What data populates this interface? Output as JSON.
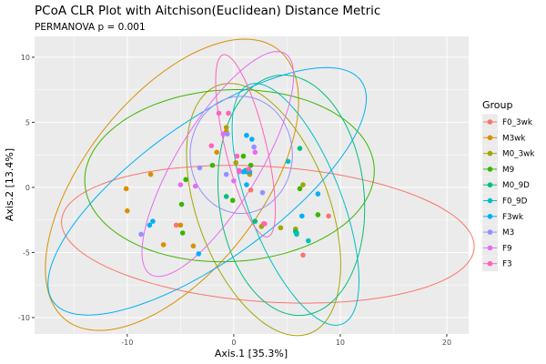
{
  "chart_data": {
    "type": "scatter",
    "title": "PCoA CLR Plot with Aitchison(Euclidean) Distance Metric",
    "subtitle": "PERMANOVA p = 0.001",
    "xlabel": "Axis.1  [35.3%]",
    "ylabel": "Axis.2  [13.4%]",
    "xlim": [
      -18.7,
      22.05
    ],
    "ylim": [
      -11.26,
      11.6
    ],
    "xticks": [
      -10,
      0,
      10,
      20
    ],
    "yticks": [
      -10,
      -5,
      0,
      5,
      10
    ],
    "grid": true,
    "legend": {
      "title": "Group",
      "placement": "right"
    },
    "series": [
      {
        "name": "F0_3wk",
        "color": "#F8766D",
        "points": [
          [
            -5.4,
            -2.9
          ],
          [
            1.6,
            -0.2
          ],
          [
            8.9,
            -2.2
          ],
          [
            6.5,
            -5.2
          ],
          [
            2.8,
            -2.8
          ]
        ],
        "ellipse": {
          "center": [
            3.2,
            -3.6
          ],
          "a": 19.4,
          "b": 5.2,
          "angle": -3
        }
      },
      {
        "name": "M3wk",
        "color": "#D89000",
        "points": [
          [
            -10.1,
            -0.1
          ],
          [
            -10.0,
            -1.8
          ],
          [
            -7.8,
            1.0
          ],
          [
            -5.0,
            -2.9
          ],
          [
            -6.6,
            -4.4
          ],
          [
            -3.8,
            -4.5
          ],
          [
            -1.6,
            2.7
          ],
          [
            -0.7,
            4.3
          ],
          [
            1.5,
            1.0
          ]
        ],
        "ellipse": {
          "center": [
            -5.8,
            0.2
          ],
          "a": 14.5,
          "b": 7.5,
          "angle": 42
        }
      },
      {
        "name": "M0_3wk",
        "color": "#A3A500",
        "points": [
          [
            0.2,
            1.9
          ],
          [
            6.5,
            0.2
          ],
          [
            4.4,
            -3.1
          ],
          [
            5.8,
            -3.2
          ],
          [
            2.6,
            -3.0
          ],
          [
            -0.7,
            4.6
          ]
        ],
        "ellipse": {
          "center": [
            2.8,
            -1.7
          ],
          "a": 10.5,
          "b": 6.0,
          "angle": -62
        }
      },
      {
        "name": "M9",
        "color": "#39B600",
        "points": [
          [
            -2.0,
            1.7
          ],
          [
            -4.5,
            0.6
          ],
          [
            -4.9,
            -1.3
          ],
          [
            -4.8,
            -3.5
          ],
          [
            0.9,
            2.4
          ],
          [
            -0.1,
            -1.0
          ],
          [
            6.2,
            -0.1
          ],
          [
            7.9,
            -2.1
          ],
          [
            5.9,
            -3.5
          ],
          [
            1.6,
            1.7
          ]
        ],
        "ellipse": {
          "center": [
            -0.4,
            0.9
          ],
          "a": 13.6,
          "b": 6.6,
          "angle": 2
        }
      },
      {
        "name": "M0_9D",
        "color": "#00BF7D",
        "points": [
          [
            -0.7,
            -0.7
          ],
          [
            2.0,
            -2.6
          ],
          [
            5.8,
            -3.4
          ],
          [
            6.2,
            3.0
          ],
          [
            1.1,
            1.3
          ]
        ],
        "ellipse": {
          "center": [
            5.4,
            -0.6
          ],
          "a": 9.3,
          "b": 6.8,
          "angle": -80
        }
      },
      {
        "name": "F0_9D",
        "color": "#00BFC4",
        "points": [
          [
            5.1,
            2.0
          ],
          [
            5.9,
            -3.6
          ],
          [
            7.0,
            -4.1
          ],
          [
            1.2,
            1.2
          ]
        ],
        "ellipse": {
          "center": [
            5.8,
            -1.3
          ],
          "a": 10.2,
          "b": 4.2,
          "angle": -63
        }
      },
      {
        "name": "F3wk",
        "color": "#00B0F6",
        "points": [
          [
            1.2,
            4.0
          ],
          [
            1.7,
            3.7
          ],
          [
            0.9,
            1.2
          ],
          [
            1.2,
            0.2
          ],
          [
            7.9,
            -0.5
          ],
          [
            6.4,
            -2.2
          ],
          [
            -7.6,
            -2.6
          ],
          [
            -7.9,
            -2.9
          ],
          [
            -3.3,
            -5.1
          ],
          [
            1.5,
            1.2
          ]
        ],
        "ellipse": {
          "center": [
            -2.5,
            -0.3
          ],
          "a": 16.8,
          "b": 5.6,
          "angle": 29
        }
      },
      {
        "name": "M3",
        "color": "#9590FF",
        "points": [
          [
            1.9,
            3.1
          ],
          [
            -3.2,
            1.5
          ],
          [
            -0.7,
            1.0
          ],
          [
            2.7,
            -0.4
          ],
          [
            -0.6,
            4.1
          ],
          [
            -8.7,
            -3.6
          ]
        ],
        "ellipse": {
          "center": [
            0.7,
            2.5
          ],
          "a": 4.8,
          "b": 4.5,
          "angle": 0
        }
      },
      {
        "name": "F9",
        "color": "#E76BF3",
        "points": [
          [
            -5.0,
            0.2
          ],
          [
            -3.6,
            0.1
          ],
          [
            0.0,
            0.5
          ],
          [
            0.5,
            1.2
          ],
          [
            -1.0,
            4.1
          ],
          [
            2.0,
            2.7
          ]
        ],
        "ellipse": {
          "center": [
            -1.5,
            1.8
          ],
          "a": 10.6,
          "b": 3.6,
          "angle": 52
        }
      },
      {
        "name": "F3",
        "color": "#FF62BC",
        "points": [
          [
            -1.4,
            5.7
          ],
          [
            -0.5,
            5.7
          ],
          [
            -2.1,
            3.2
          ],
          [
            0.3,
            2.4
          ],
          [
            0.5,
            1.3
          ],
          [
            2.9,
            -2.8
          ],
          [
            1.4,
            1.4
          ]
        ],
        "ellipse": {
          "center": [
            1.1,
            3.2
          ],
          "a": 7.3,
          "b": 1.9,
          "angle": 107
        }
      }
    ]
  }
}
